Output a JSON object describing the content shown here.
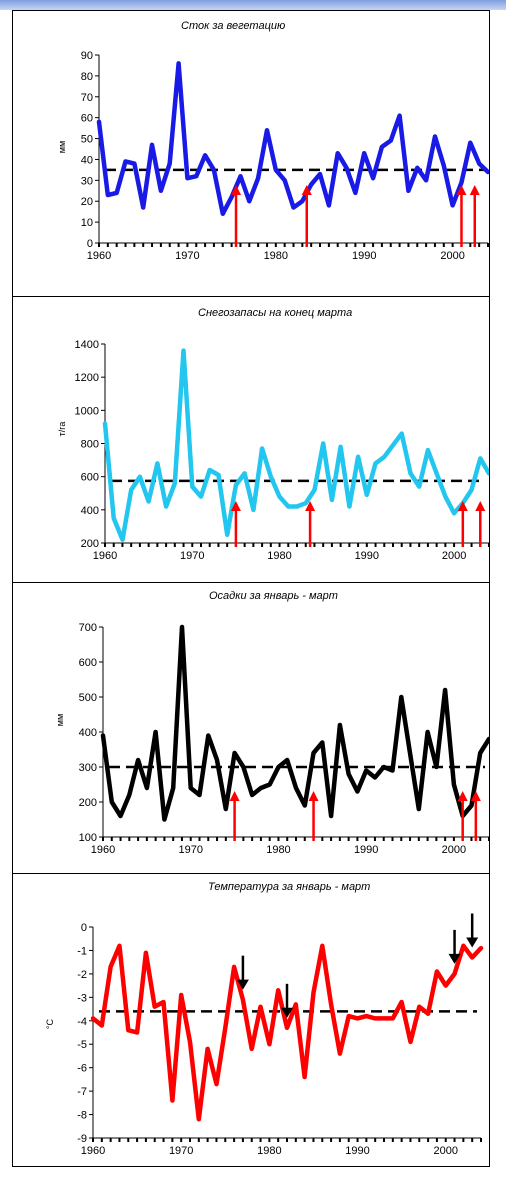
{
  "chart_data": [
    {
      "type": "line",
      "title": "Сток за вегетацию",
      "ylabel": "мм",
      "x": [
        1960,
        1961,
        1962,
        1963,
        1964,
        1965,
        1966,
        1967,
        1968,
        1969,
        1970,
        1971,
        1972,
        1973,
        1974,
        1975,
        1976,
        1977,
        1978,
        1979,
        1980,
        1981,
        1982,
        1983,
        1984,
        1985,
        1986,
        1987,
        1988,
        1989,
        1990,
        1991,
        1992,
        1993,
        1994,
        1995,
        1996,
        1997,
        1998,
        1999,
        2000,
        2001,
        2002,
        2003,
        2004
      ],
      "values": [
        58,
        23,
        24,
        39,
        38,
        17,
        47,
        25,
        38,
        86,
        31,
        32,
        42,
        35,
        14,
        22,
        32,
        20,
        31,
        54,
        35,
        30,
        17,
        20,
        28,
        33,
        18,
        43,
        36,
        24,
        43,
        31,
        46,
        49,
        61,
        25,
        36,
        30,
        51,
        37,
        18,
        29,
        48,
        38,
        34
      ],
      "ylim": [
        0,
        90
      ],
      "yticks": [
        0,
        10,
        20,
        30,
        40,
        50,
        60,
        70,
        80,
        90
      ],
      "xticks": [
        1960,
        1970,
        1980,
        1990,
        2000
      ],
      "mean_line": 35,
      "line_color": "#1a1ae6",
      "arrow_color": "#ff0000",
      "arrow_direction": "up",
      "arrow_years": [
        1975.5,
        1983.5,
        2001,
        2002.5
      ]
    },
    {
      "type": "line",
      "title": "Снегозапасы на конец марта",
      "ylabel": "т/га",
      "x": [
        1960,
        1961,
        1962,
        1963,
        1964,
        1965,
        1966,
        1967,
        1968,
        1969,
        1970,
        1971,
        1972,
        1973,
        1974,
        1975,
        1976,
        1977,
        1978,
        1979,
        1980,
        1981,
        1982,
        1983,
        1984,
        1985,
        1986,
        1987,
        1988,
        1989,
        1990,
        1991,
        1992,
        1993,
        1994,
        1995,
        1996,
        1997,
        1998,
        1999,
        2000,
        2001,
        2002,
        2003,
        2004
      ],
      "values": [
        920,
        350,
        220,
        520,
        600,
        450,
        680,
        420,
        560,
        1360,
        540,
        480,
        640,
        610,
        250,
        550,
        620,
        400,
        770,
        600,
        480,
        420,
        420,
        440,
        520,
        800,
        460,
        780,
        420,
        720,
        490,
        680,
        720,
        790,
        860,
        620,
        540,
        760,
        620,
        480,
        380,
        440,
        520,
        710,
        620
      ],
      "ylim": [
        200,
        1400
      ],
      "yticks": [
        200,
        400,
        600,
        800,
        1000,
        1200,
        1400
      ],
      "xticks": [
        1960,
        1970,
        1980,
        1990,
        2000
      ],
      "mean_line": 575,
      "line_color": "#22c6ee",
      "arrow_color": "#ff0000",
      "arrow_direction": "up",
      "arrow_years": [
        1975,
        1983.5,
        2001,
        2003
      ]
    },
    {
      "type": "line",
      "title": "Осадки за январь - март",
      "ylabel": "мм",
      "x": [
        1960,
        1961,
        1962,
        1963,
        1964,
        1965,
        1966,
        1967,
        1968,
        1969,
        1970,
        1971,
        1972,
        1973,
        1974,
        1975,
        1976,
        1977,
        1978,
        1979,
        1980,
        1981,
        1982,
        1983,
        1984,
        1985,
        1986,
        1987,
        1988,
        1989,
        1990,
        1991,
        1992,
        1993,
        1994,
        1995,
        1996,
        1997,
        1998,
        1999,
        2000,
        2001,
        2002,
        2003,
        2004
      ],
      "values": [
        390,
        200,
        160,
        220,
        320,
        240,
        400,
        150,
        240,
        700,
        240,
        220,
        390,
        320,
        180,
        340,
        300,
        220,
        240,
        250,
        300,
        320,
        240,
        190,
        340,
        370,
        160,
        420,
        280,
        230,
        290,
        270,
        300,
        290,
        500,
        340,
        180,
        400,
        300,
        520,
        250,
        160,
        190,
        340,
        380
      ],
      "ylim": [
        100,
        700
      ],
      "yticks": [
        100,
        200,
        300,
        400,
        500,
        600,
        700
      ],
      "xticks": [
        1960,
        1970,
        1980,
        1990,
        2000
      ],
      "mean_line": 300,
      "line_color": "#000000",
      "arrow_color": "#ff0000",
      "arrow_direction": "up",
      "arrow_years": [
        1975,
        1984,
        2001,
        2002.5
      ]
    },
    {
      "type": "line",
      "title": "Температура за январь - март",
      "ylabel": "°С",
      "x": [
        1960,
        1961,
        1962,
        1963,
        1964,
        1965,
        1966,
        1967,
        1968,
        1969,
        1970,
        1971,
        1972,
        1973,
        1974,
        1975,
        1976,
        1977,
        1978,
        1979,
        1980,
        1981,
        1982,
        1983,
        1984,
        1985,
        1986,
        1987,
        1988,
        1989,
        1990,
        1991,
        1992,
        1993,
        1994,
        1995,
        1996,
        1997,
        1998,
        1999,
        2000,
        2001,
        2002,
        2003,
        2004
      ],
      "values": [
        -3.9,
        -4.2,
        -1.7,
        -0.8,
        -4.4,
        -4.5,
        -1.1,
        -3.4,
        -3.2,
        -7.4,
        -2.9,
        -4.9,
        -8.2,
        -5.2,
        -6.7,
        -4.3,
        -1.7,
        -3.1,
        -5.2,
        -3.4,
        -5.0,
        -2.7,
        -4.3,
        -3.3,
        -6.4,
        -2.8,
        -0.8,
        -3.3,
        -5.4,
        -3.8,
        -3.9,
        -3.8,
        -3.9,
        -3.9,
        -3.9,
        -3.2,
        -4.9,
        -3.4,
        -3.7,
        -1.9,
        -2.5,
        -2.0,
        -0.8,
        -1.3,
        -0.9
      ],
      "ylim": [
        -9,
        0
      ],
      "yticks": [
        0,
        -1,
        -2,
        -3,
        -4,
        -5,
        -6,
        -7,
        -8,
        -9
      ],
      "xticks": [
        1960,
        1970,
        1980,
        1990,
        2000
      ],
      "mean_line": -3.6,
      "line_color": "#ff0000",
      "arrow_color": "#000000",
      "arrow_direction": "down",
      "arrow_years": [
        1977,
        1982,
        2001,
        2003
      ]
    }
  ]
}
